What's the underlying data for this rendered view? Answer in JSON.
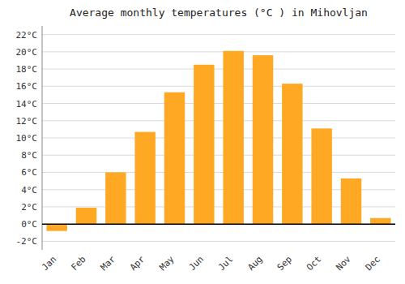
{
  "chart_data": {
    "type": "bar",
    "title": "Average monthly temperatures (°C ) in Mihovljan",
    "categories": [
      "Jan",
      "Feb",
      "Mar",
      "Apr",
      "May",
      "Jun",
      "Jul",
      "Aug",
      "Sep",
      "Oct",
      "Nov",
      "Dec"
    ],
    "values": [
      -0.8,
      1.9,
      6.0,
      10.7,
      15.3,
      18.5,
      20.1,
      19.6,
      16.3,
      11.1,
      5.3,
      0.7
    ],
    "color": "#FFA824",
    "ylim": [
      -3,
      23
    ],
    "yticks": [
      {
        "value": -2,
        "label": "-2°C"
      },
      {
        "value": 0,
        "label": "0°C"
      },
      {
        "value": 2,
        "label": "2°C"
      },
      {
        "value": 4,
        "label": "4°C"
      },
      {
        "value": 6,
        "label": "6°C"
      },
      {
        "value": 8,
        "label": "8°C"
      },
      {
        "value": 10,
        "label": "10°C"
      },
      {
        "value": 12,
        "label": "12°C"
      },
      {
        "value": 14,
        "label": "14°C"
      },
      {
        "value": 16,
        "label": "16°C"
      },
      {
        "value": 18,
        "label": "18°C"
      },
      {
        "value": 20,
        "label": "20°C"
      },
      {
        "value": 22,
        "label": "22°C"
      }
    ],
    "grid": true
  }
}
